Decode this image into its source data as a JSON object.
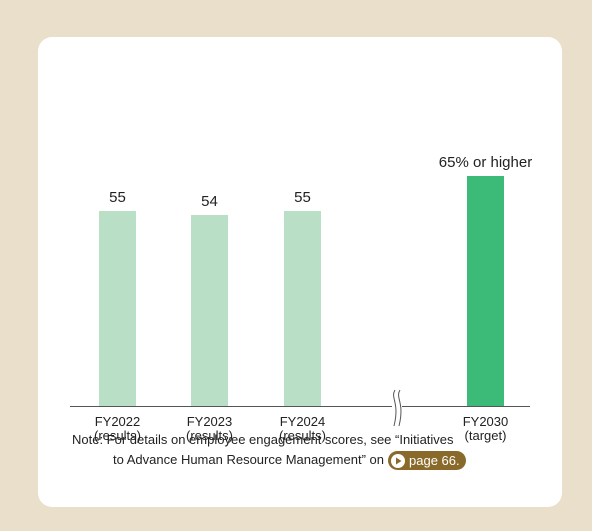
{
  "chart_data": {
    "type": "bar",
    "categories": [
      "FY2022\n(results)",
      "FY2023\n(results)",
      "FY2024\n(results)",
      "FY2030\n(target)"
    ],
    "values": [
      55,
      54,
      55,
      65
    ],
    "value_labels": [
      "55",
      "54",
      "55",
      "65% or higher"
    ],
    "colors": [
      "#b9e0c6",
      "#b9e0c6",
      "#b9e0c6",
      "#3cba78"
    ],
    "note": [
      "Note:  For details on employee engagement scores, see “Initiatives",
      "to Advance Human Resource Management” on"
    ],
    "link": "page 66."
  }
}
